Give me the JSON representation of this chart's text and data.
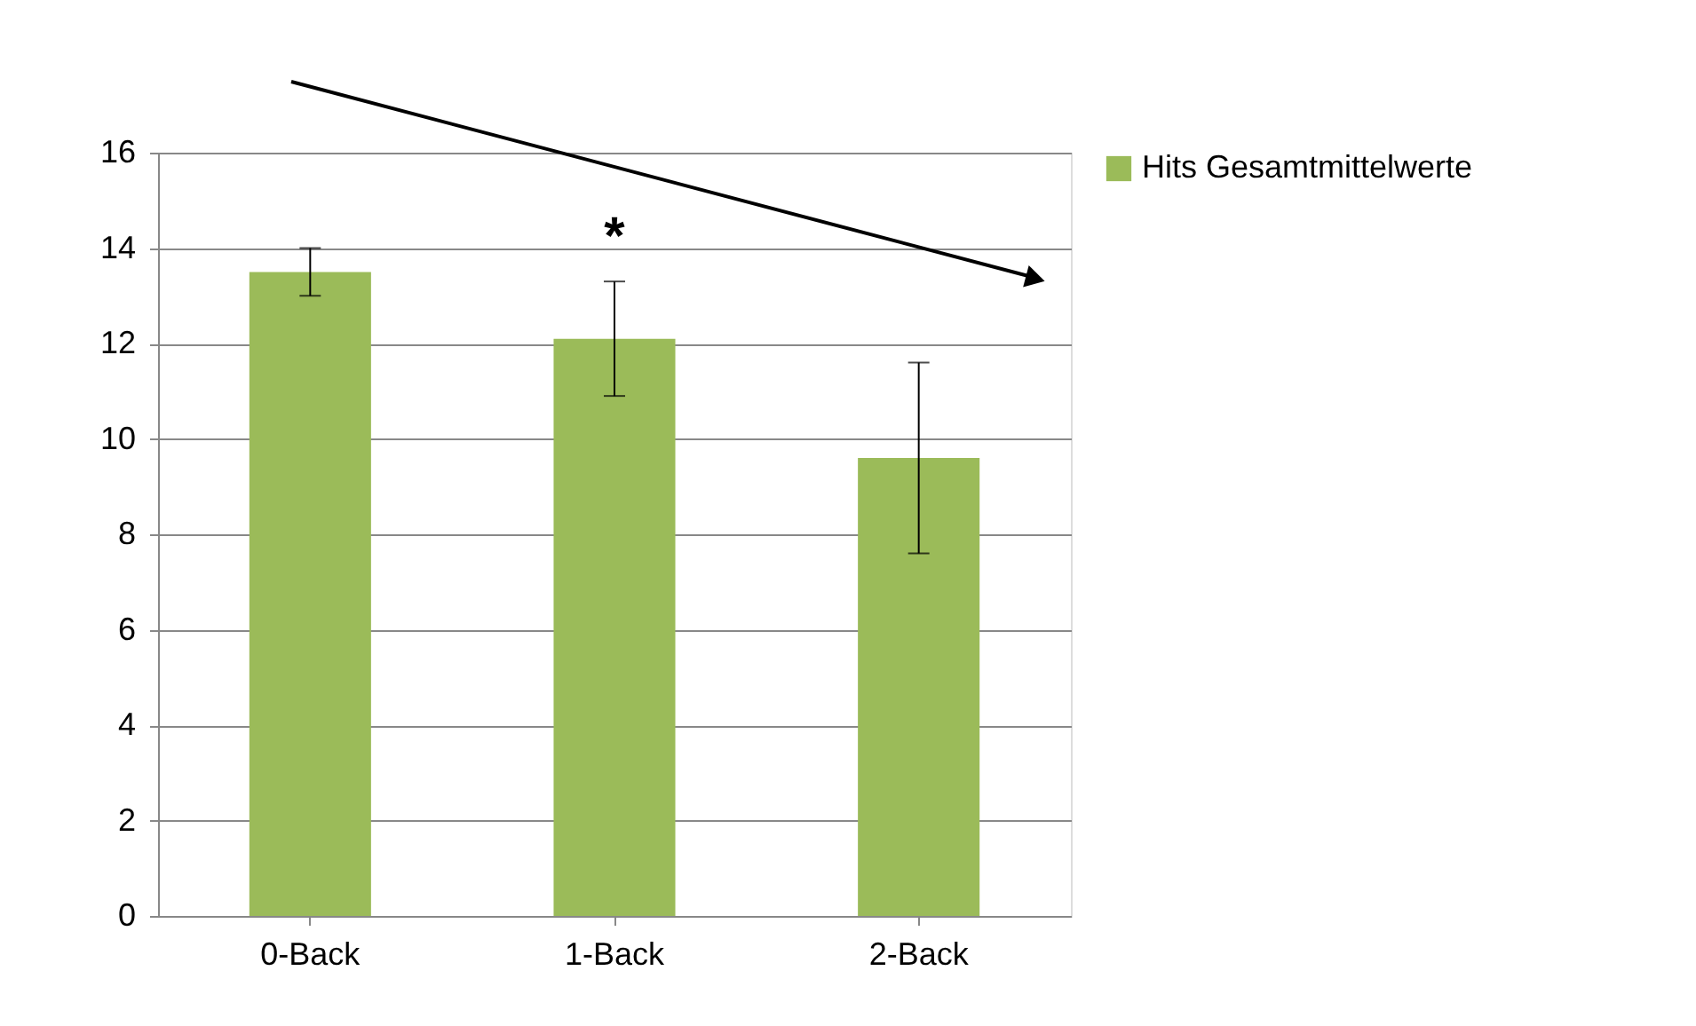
{
  "chart_data": {
    "type": "bar",
    "categories": [
      "0-Back",
      "1-Back",
      "2-Back"
    ],
    "series": [
      {
        "name": "Hits Gesamtmittelwerte",
        "color": "#9bbb59",
        "values": [
          13.5,
          12.1,
          9.6
        ],
        "errors": [
          0.5,
          1.2,
          2.0
        ]
      }
    ],
    "ylim": [
      0,
      16
    ],
    "yticks": [
      0,
      2,
      4,
      6,
      8,
      10,
      12,
      14,
      16
    ],
    "grid": "y",
    "legend": "right",
    "annotations": [
      "*"
    ]
  }
}
